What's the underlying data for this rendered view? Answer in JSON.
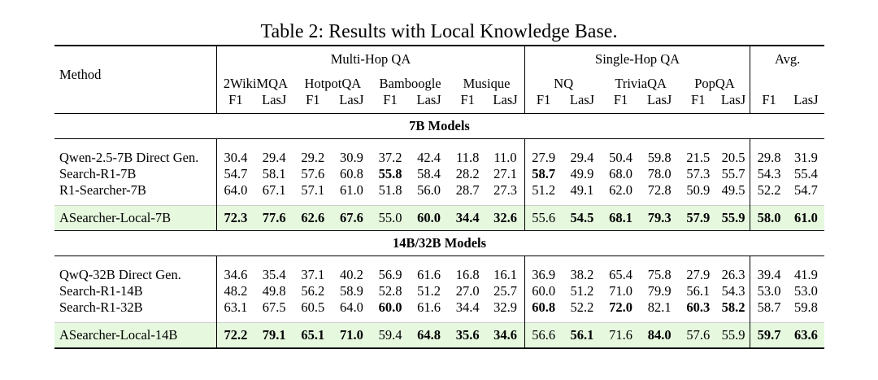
{
  "caption": "Table 2: Results with Local Knowledge Base.",
  "header": {
    "method": "Method",
    "multi_hop": "Multi-Hop QA",
    "single_hop": "Single-Hop QA",
    "avg": "Avg.",
    "datasets": [
      "2WikiMQA",
      "HotpotQA",
      "Bamboogle",
      "Musique",
      "NQ",
      "TriviaQA",
      "PopQA"
    ],
    "metrics": [
      "F1",
      "LasJ"
    ]
  },
  "sections": [
    {
      "title": "7B Models",
      "rows": [
        {
          "method": "Qwen-2.5-7B Direct Gen.",
          "values": [
            "30.4",
            "29.4",
            "29.2",
            "30.9",
            "37.2",
            "42.4",
            "11.8",
            "11.0",
            "27.9",
            "29.4",
            "50.4",
            "59.8",
            "21.5",
            "20.5",
            "29.8",
            "31.9"
          ],
          "bold": []
        },
        {
          "method": "Search-R1-7B",
          "values": [
            "54.7",
            "58.1",
            "57.6",
            "60.8",
            "55.8",
            "58.4",
            "28.2",
            "27.1",
            "58.7",
            "49.9",
            "68.0",
            "78.0",
            "57.3",
            "55.7",
            "54.3",
            "55.4"
          ],
          "bold": [
            4,
            8
          ]
        },
        {
          "method": "R1-Searcher-7B",
          "values": [
            "64.0",
            "67.1",
            "57.1",
            "61.0",
            "51.8",
            "56.0",
            "28.7",
            "27.3",
            "51.2",
            "49.1",
            "62.0",
            "72.8",
            "50.9",
            "49.5",
            "52.2",
            "54.7"
          ],
          "bold": []
        }
      ],
      "highlight": {
        "method": "ASearcher-Local-7B",
        "values": [
          "72.3",
          "77.6",
          "62.6",
          "67.6",
          "55.0",
          "60.0",
          "34.4",
          "32.6",
          "55.6",
          "54.5",
          "68.1",
          "79.3",
          "57.9",
          "55.9",
          "58.0",
          "61.0"
        ],
        "bold": [
          0,
          1,
          2,
          3,
          5,
          6,
          7,
          9,
          10,
          11,
          12,
          13,
          14,
          15
        ]
      }
    },
    {
      "title": "14B/32B Models",
      "rows": [
        {
          "method": "QwQ-32B Direct Gen.",
          "values": [
            "34.6",
            "35.4",
            "37.1",
            "40.2",
            "56.9",
            "61.6",
            "16.8",
            "16.1",
            "36.9",
            "38.2",
            "65.4",
            "75.8",
            "27.9",
            "26.3",
            "39.4",
            "41.9"
          ],
          "bold": []
        },
        {
          "method": "Search-R1-14B",
          "values": [
            "48.2",
            "49.8",
            "56.2",
            "58.9",
            "52.8",
            "51.2",
            "27.0",
            "25.7",
            "60.0",
            "51.2",
            "71.0",
            "79.9",
            "56.1",
            "54.3",
            "53.0",
            "53.0"
          ],
          "bold": []
        },
        {
          "method": "Search-R1-32B",
          "values": [
            "63.1",
            "67.5",
            "60.5",
            "64.0",
            "60.0",
            "61.6",
            "34.4",
            "32.9",
            "60.8",
            "52.2",
            "72.0",
            "82.1",
            "60.3",
            "58.2",
            "58.7",
            "59.8"
          ],
          "bold": [
            4,
            8,
            10,
            12,
            13
          ]
        }
      ],
      "highlight": {
        "method": "ASearcher-Local-14B",
        "values": [
          "72.2",
          "79.1",
          "65.1",
          "71.0",
          "59.4",
          "64.8",
          "35.6",
          "34.6",
          "56.6",
          "56.1",
          "71.6",
          "84.0",
          "57.6",
          "55.9",
          "59.7",
          "63.6"
        ],
        "bold": [
          0,
          1,
          2,
          3,
          5,
          6,
          7,
          9,
          11,
          14,
          15
        ]
      }
    }
  ]
}
